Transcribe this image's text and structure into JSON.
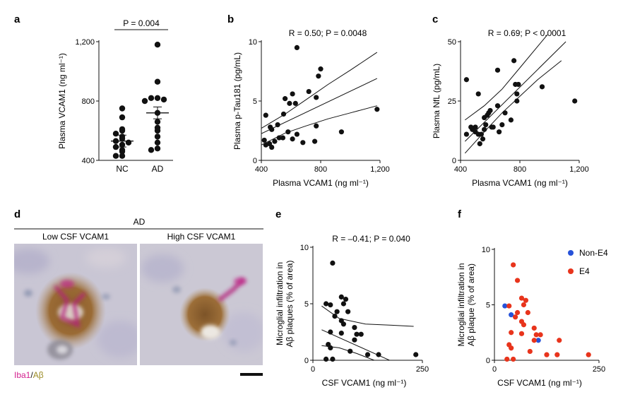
{
  "figure": {
    "panel_labels": {
      "a": "a",
      "b": "b",
      "c": "c",
      "d": "d",
      "e": "e",
      "f": "f"
    }
  },
  "chart_data": [
    {
      "id": "a",
      "type": "scatter",
      "title": "",
      "ylabel": "Plasma VCAM1 (ng ml⁻¹)",
      "xlabel": "",
      "ylim": [
        400,
        1200
      ],
      "yticks": [
        "400",
        "800",
        "1,200"
      ],
      "categories": [
        "NC",
        "AD"
      ],
      "significance": "P = 0.004",
      "groups": [
        {
          "name": "NC",
          "values": [
            750,
            690,
            610,
            600,
            580,
            560,
            545,
            530,
            520,
            505,
            490,
            470,
            460,
            430,
            430
          ],
          "mean": 530
        },
        {
          "name": "AD",
          "values": [
            1180,
            930,
            820,
            820,
            810,
            800,
            720,
            660,
            620,
            600,
            560,
            520,
            480,
            470
          ],
          "mean": 720
        }
      ]
    },
    {
      "id": "b",
      "type": "scatter",
      "title": "R = 0.50; P = 0.0048",
      "xlabel": "Plasma VCAM1 (ng ml⁻¹)",
      "ylabel": "Plasma p-Tau181 (pg/mL)",
      "xlim": [
        400,
        1200
      ],
      "ylim": [
        0,
        10
      ],
      "xticks": [
        "400",
        "800",
        "1,200"
      ],
      "yticks": [
        "0",
        "5",
        "10"
      ],
      "points": [
        [
          640,
          9.5
        ],
        [
          800,
          7.7
        ],
        [
          785,
          7.1
        ],
        [
          720,
          5.8
        ],
        [
          770,
          5.3
        ],
        [
          610,
          5.6
        ],
        [
          560,
          5.2
        ],
        [
          590,
          4.8
        ],
        [
          630,
          4.8
        ],
        [
          430,
          3.8
        ],
        [
          550,
          3.9
        ],
        [
          510,
          3.0
        ],
        [
          460,
          2.8
        ],
        [
          470,
          2.6
        ],
        [
          580,
          2.4
        ],
        [
          640,
          2.2
        ],
        [
          770,
          2.9
        ],
        [
          940,
          2.4
        ],
        [
          1180,
          4.3
        ],
        [
          420,
          1.7
        ],
        [
          430,
          1.3
        ],
        [
          455,
          1.4
        ],
        [
          490,
          1.6
        ],
        [
          520,
          1.9
        ],
        [
          545,
          1.9
        ],
        [
          610,
          1.8
        ],
        [
          680,
          1.5
        ],
        [
          760,
          1.6
        ],
        [
          470,
          1.1
        ]
      ],
      "fit": {
        "x": [
          400,
          1180
        ],
        "y": [
          2.25,
          6.9
        ]
      },
      "ci_upper": {
        "x": [
          400,
          560,
          700,
          850,
          1000,
          1180
        ],
        "y": [
          2.7,
          3.9,
          5.1,
          6.4,
          7.6,
          9.1
        ]
      },
      "ci_lower": {
        "x": [
          400,
          560,
          700,
          850,
          1000,
          1180
        ],
        "y": [
          1.3,
          2.3,
          2.9,
          3.5,
          4.0,
          4.6
        ]
      }
    },
    {
      "id": "c",
      "type": "scatter",
      "title": "R = 0.69; P < 0.0001",
      "xlabel": "Plasma VCAM1 (ng ml⁻¹)",
      "ylabel": "Plasma NfL (pg/mL)",
      "xlim": [
        400,
        1200
      ],
      "ylim": [
        0,
        50
      ],
      "xticks": [
        "400",
        "800",
        "1,200"
      ],
      "yticks": [
        "0",
        "25",
        "50"
      ],
      "points": [
        [
          440,
          34
        ],
        [
          480,
          13
        ],
        [
          500,
          12
        ],
        [
          520,
          28
        ],
        [
          500,
          14
        ],
        [
          520,
          11
        ],
        [
          540,
          11
        ],
        [
          550,
          9
        ],
        [
          530,
          7
        ],
        [
          560,
          13
        ],
        [
          570,
          15
        ],
        [
          580,
          19
        ],
        [
          560,
          18
        ],
        [
          590,
          20
        ],
        [
          600,
          21
        ],
        [
          610,
          14
        ],
        [
          620,
          14
        ],
        [
          650,
          23
        ],
        [
          660,
          12
        ],
        [
          680,
          15
        ],
        [
          650,
          38
        ],
        [
          700,
          20
        ],
        [
          740,
          17
        ],
        [
          760,
          42
        ],
        [
          770,
          32
        ],
        [
          780,
          28
        ],
        [
          790,
          32
        ],
        [
          780,
          25
        ],
        [
          950,
          31
        ],
        [
          1170,
          25
        ],
        [
          440,
          11
        ],
        [
          470,
          14
        ]
      ],
      "fit": {
        "x": [
          430,
          1110
        ],
        "y": [
          8.0,
          50.0
        ]
      },
      "ci_upper": {
        "x": [
          430,
          560,
          680,
          800,
          920,
          1080
        ],
        "y": [
          17.0,
          23.0,
          30.0,
          39.0,
          48.0,
          60.0
        ]
      },
      "ci_lower": {
        "x": [
          430,
          560,
          680,
          800,
          920,
          1080
        ],
        "y": [
          3.0,
          12.0,
          20.0,
          27.0,
          34.0,
          42.0
        ]
      }
    },
    {
      "id": "e",
      "type": "scatter",
      "title": "R = –0.41; P = 0.040",
      "xlabel": "CSF VCAM1 (ng ml⁻¹)",
      "ylabel": "Microglial infiltration in Aβ plaques (% of area)",
      "xlim": [
        0,
        250
      ],
      "ylim": [
        0,
        10
      ],
      "xticks": [
        "0",
        "250"
      ],
      "yticks": [
        "0",
        "5",
        "10"
      ],
      "points": [
        [
          45,
          8.6
        ],
        [
          65,
          5.6
        ],
        [
          75,
          5.4
        ],
        [
          70,
          5.0
        ],
        [
          30,
          5.0
        ],
        [
          40,
          4.9
        ],
        [
          55,
          4.3
        ],
        [
          80,
          4.3
        ],
        [
          50,
          3.9
        ],
        [
          65,
          3.5
        ],
        [
          70,
          3.2
        ],
        [
          95,
          2.9
        ],
        [
          40,
          2.5
        ],
        [
          65,
          2.4
        ],
        [
          100,
          2.3
        ],
        [
          110,
          2.3
        ],
        [
          35,
          1.4
        ],
        [
          95,
          1.8
        ],
        [
          40,
          1.1
        ],
        [
          85,
          0.8
        ],
        [
          125,
          0.5
        ],
        [
          150,
          0.5
        ],
        [
          235,
          0.5
        ],
        [
          30,
          0.1
        ],
        [
          45,
          0.1
        ]
      ],
      "fit": {
        "x": [
          20,
          175
        ],
        "y": [
          2.7,
          0.0
        ]
      },
      "ci_upper": {
        "x": [
          20,
          60,
          120,
          180,
          230
        ],
        "y": [
          4.8,
          3.7,
          3.2,
          3.1,
          3.0
        ]
      },
      "ci_lower": {
        "x": [
          20,
          60,
          100,
          140,
          175
        ],
        "y": [
          1.3,
          1.1,
          0.6,
          0.0,
          -0.8
        ]
      }
    },
    {
      "id": "f",
      "type": "scatter",
      "title": "",
      "xlabel": "CSF VCAM1 (ng ml⁻¹)",
      "ylabel": "Microglial infiltration in Aβ plaque (% of area)",
      "xlim": [
        0,
        250
      ],
      "ylim": [
        0,
        10
      ],
      "xticks": [
        "0",
        "250"
      ],
      "yticks": [
        "0",
        "5",
        "10"
      ],
      "legend_position": "top-right",
      "series": [
        {
          "name": "Non-E4",
          "color": "#2652d9",
          "points": [
            [
              25,
              4.9
            ],
            [
              40,
              4.1
            ],
            [
              105,
              1.8
            ]
          ]
        },
        {
          "name": "E4",
          "color": "#e8341c",
          "points": [
            [
              45,
              8.6
            ],
            [
              55,
              7.2
            ],
            [
              65,
              5.6
            ],
            [
              75,
              5.4
            ],
            [
              70,
              5.0
            ],
            [
              35,
              4.9
            ],
            [
              55,
              4.3
            ],
            [
              80,
              4.3
            ],
            [
              50,
              3.9
            ],
            [
              65,
              3.5
            ],
            [
              70,
              3.2
            ],
            [
              95,
              2.9
            ],
            [
              40,
              2.5
            ],
            [
              65,
              2.4
            ],
            [
              100,
              2.3
            ],
            [
              110,
              2.3
            ],
            [
              35,
              1.4
            ],
            [
              95,
              1.8
            ],
            [
              40,
              1.1
            ],
            [
              85,
              0.8
            ],
            [
              125,
              0.5
            ],
            [
              150,
              0.5
            ],
            [
              155,
              1.8
            ],
            [
              225,
              0.5
            ],
            [
              30,
              0.1
            ],
            [
              45,
              0.1
            ]
          ]
        }
      ]
    }
  ],
  "histology": {
    "header": "AD",
    "left_label": "Low CSF VCAM1",
    "right_label": "High CSF VCAM1",
    "stain_iba1": "Iba1",
    "stain_sep": "/",
    "stain_abeta": "Aβ",
    "colors": {
      "iba1": "#d4218f",
      "abeta": "#9a8a23"
    }
  }
}
